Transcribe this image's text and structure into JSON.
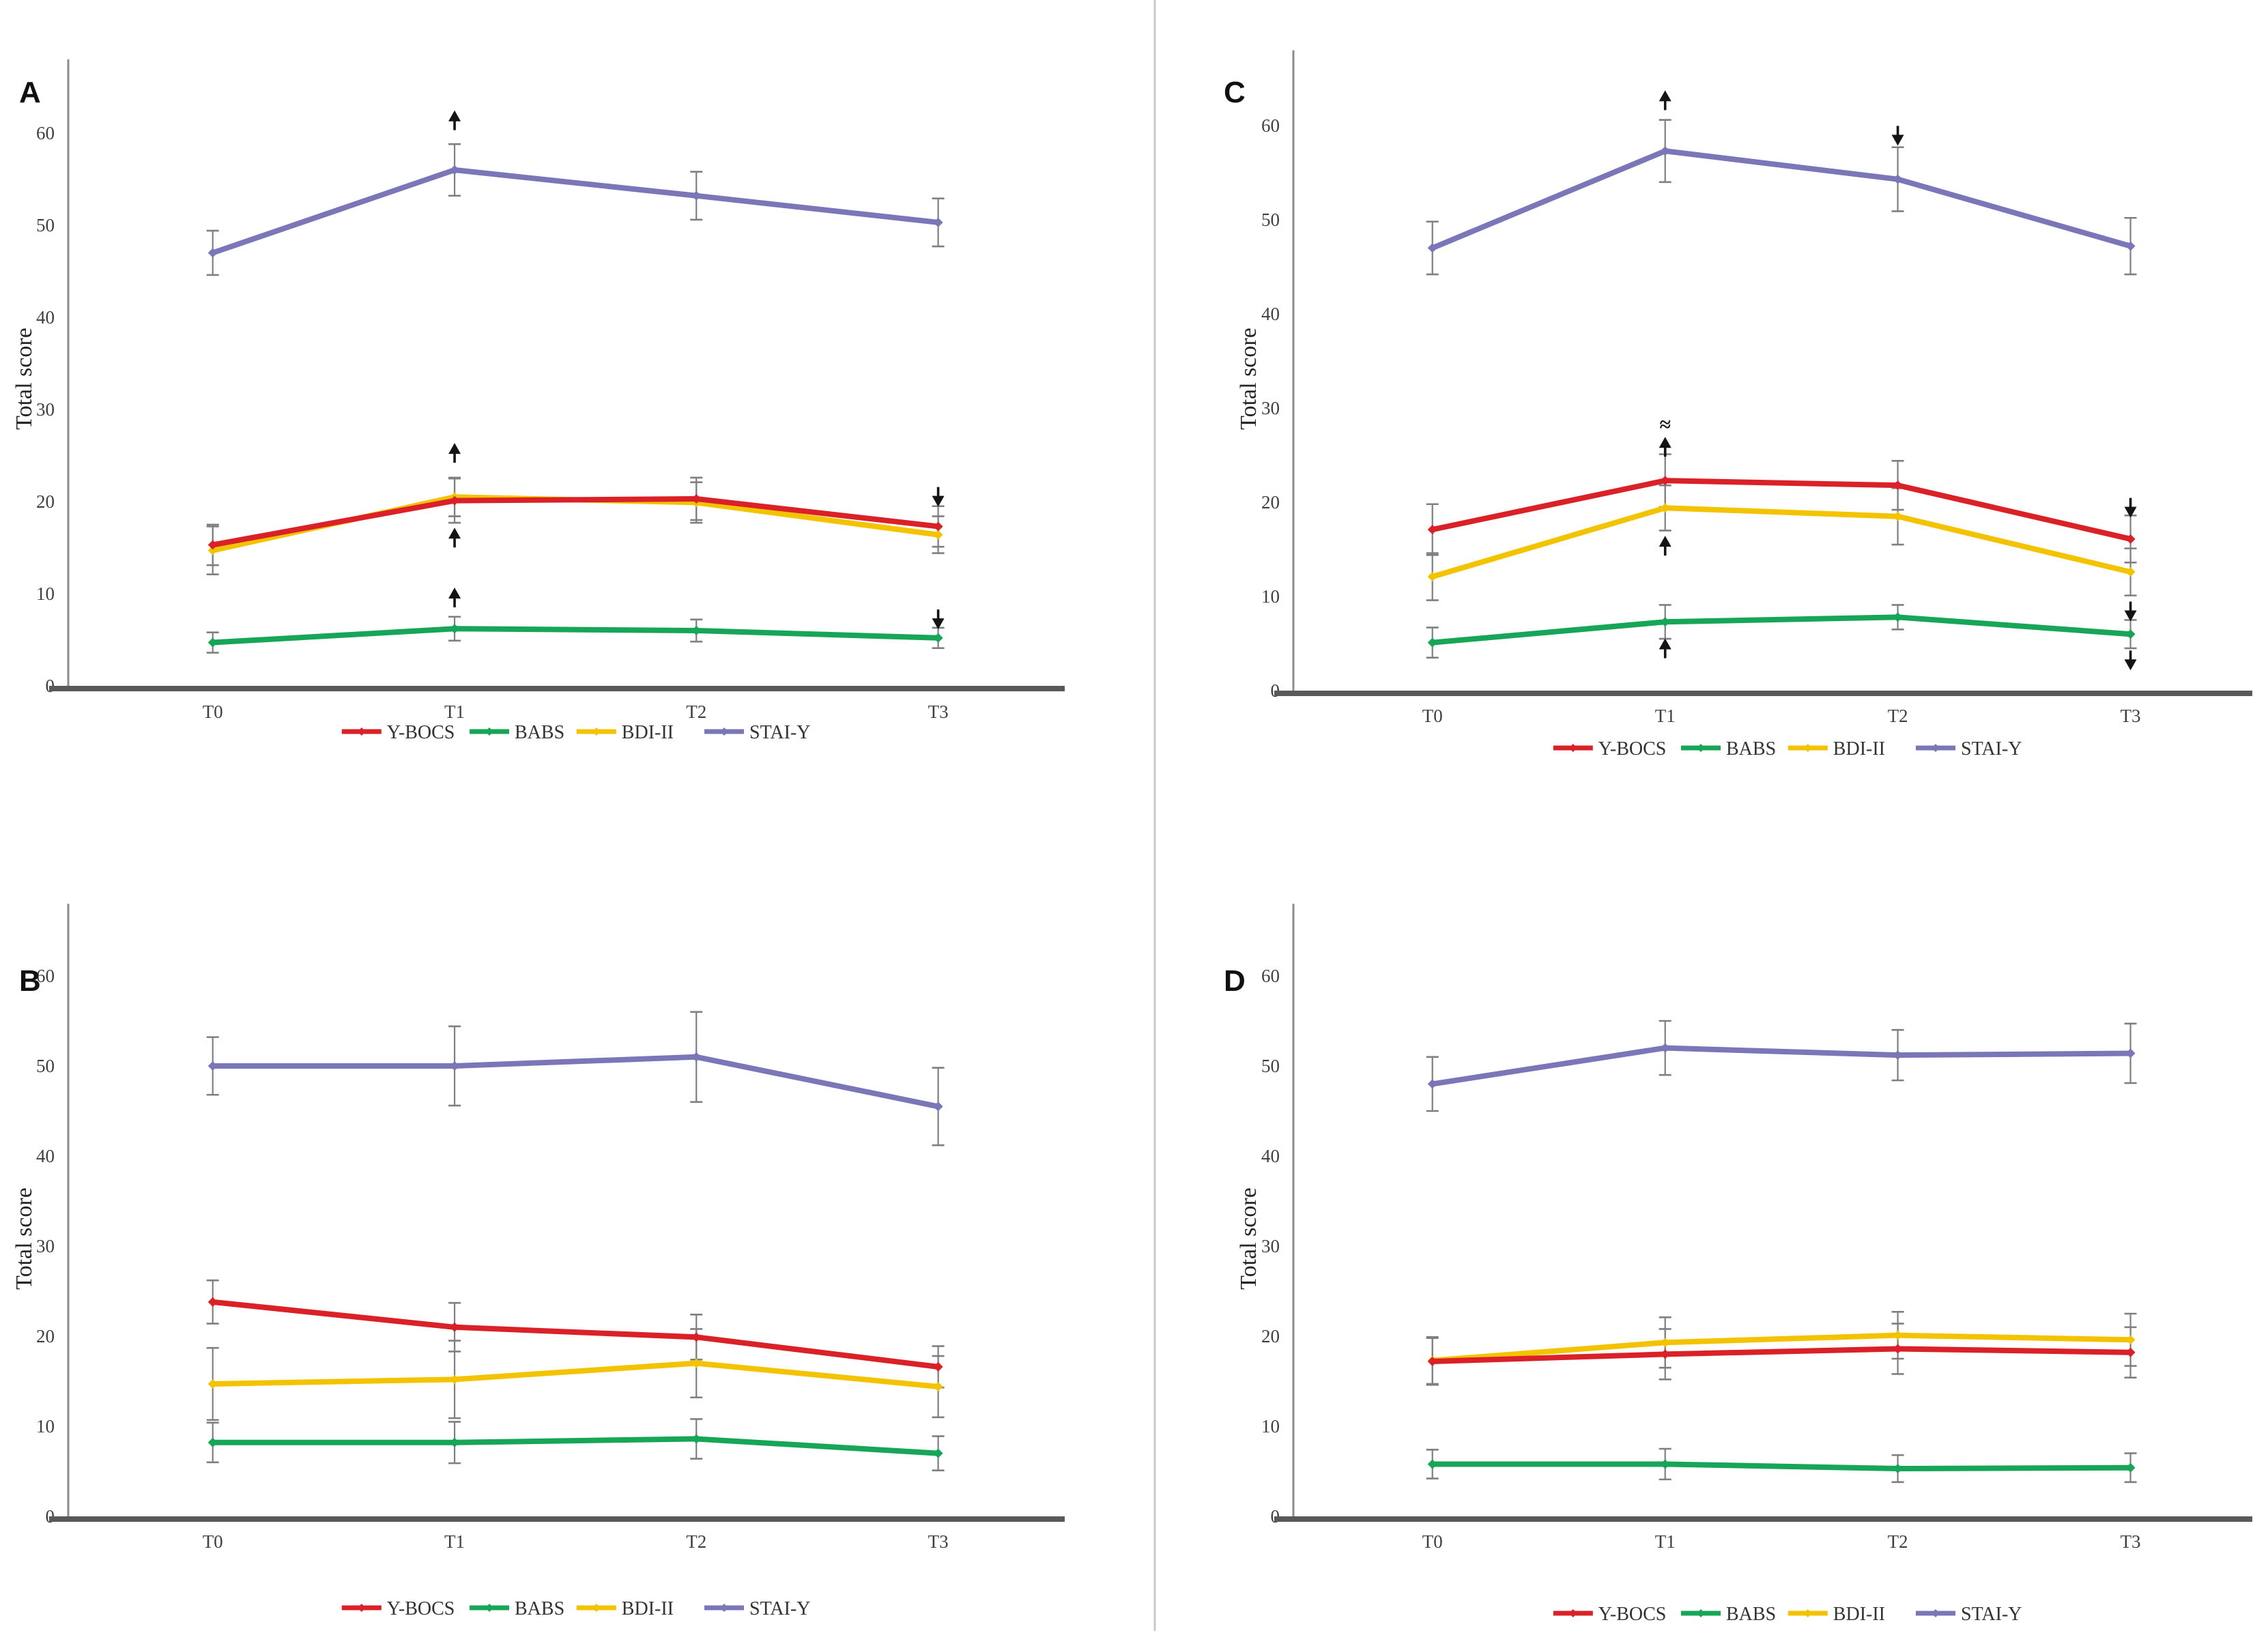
{
  "figure": {
    "ylabel": "Total score",
    "categories": [
      "T0",
      "T1",
      "T2",
      "T3"
    ],
    "yticks": [
      0,
      10,
      20,
      30,
      40,
      50,
      60
    ],
    "legend": [
      "Y-BOCS",
      "BABS",
      "BDI-II",
      "STAI-Y"
    ],
    "colors": {
      "Y-BOCS": "#da2128",
      "BABS": "#17a558",
      "BDI-II": "#f4c300",
      "STAI-Y": "#7b76b7",
      "error_bar": "#7f7f7f",
      "axis": "#595959",
      "text": "#3f3f3f",
      "annotation": "#141414",
      "separator": "#c9c9c9"
    }
  },
  "chart_data": [
    {
      "id": "A",
      "type": "line",
      "ylabel": "Total score",
      "categories": [
        "T0",
        "T1",
        "T2",
        "T3"
      ],
      "yticks": [
        0,
        10,
        20,
        30,
        40,
        50,
        60
      ],
      "ylim": [
        0,
        65
      ],
      "legend": [
        "Y-BOCS",
        "BABS",
        "BDI-II",
        "STAI-Y"
      ],
      "series": [
        {
          "name": "STAI-Y",
          "color": "#7b76b7",
          "values": [
            47.0,
            56.0,
            53.2,
            50.3
          ],
          "err": [
            2.4,
            2.8,
            2.6,
            2.6
          ]
        },
        {
          "name": "BABS",
          "color": "#17a558",
          "values": [
            4.7,
            6.2,
            6.0,
            5.2
          ],
          "err": [
            1.1,
            1.3,
            1.2,
            1.1
          ]
        },
        {
          "name": "BDI-II",
          "color": "#f4c300",
          "values": [
            14.7,
            20.5,
            19.9,
            16.4
          ],
          "err": [
            2.6,
            2.1,
            2.2,
            2.0
          ]
        },
        {
          "name": "Y-BOCS",
          "color": "#da2128",
          "values": [
            15.3,
            20.1,
            20.3,
            17.3
          ],
          "err": [
            2.2,
            2.4,
            2.3,
            2.2
          ]
        }
      ],
      "annotations": [
        {
          "category": "T1",
          "value": 61.5,
          "symbol": "up-arrow"
        },
        {
          "category": "T1",
          "value": 25.4,
          "symbol": "up-arrow"
        },
        {
          "category": "T1",
          "value": 16.2,
          "symbol": "up-arrow"
        },
        {
          "category": "T1",
          "value": 9.7,
          "symbol": "up-arrow"
        },
        {
          "category": "T3",
          "value": 20.4,
          "symbol": "down-arrow"
        },
        {
          "category": "T3",
          "value": 7.1,
          "symbol": "down-arrow"
        }
      ]
    },
    {
      "id": "B",
      "type": "line",
      "ylabel": "Total score",
      "categories": [
        "T0",
        "T1",
        "T2",
        "T3"
      ],
      "yticks": [
        0,
        10,
        20,
        30,
        40,
        50,
        60
      ],
      "ylim": [
        0,
        65
      ],
      "legend": [
        "Y-BOCS",
        "BABS",
        "BDI-II",
        "STAI-Y"
      ],
      "series": [
        {
          "name": "STAI-Y",
          "color": "#7b76b7",
          "values": [
            50.0,
            50.0,
            51.0,
            45.5
          ],
          "err": [
            3.2,
            4.4,
            5.0,
            4.3
          ]
        },
        {
          "name": "BABS",
          "color": "#17a558",
          "values": [
            8.2,
            8.2,
            8.6,
            7.0
          ],
          "err": [
            2.2,
            2.3,
            2.2,
            1.9
          ]
        },
        {
          "name": "BDI-II",
          "color": "#f4c300",
          "values": [
            14.7,
            15.2,
            17.0,
            14.4
          ],
          "err": [
            4.0,
            4.3,
            3.8,
            3.4
          ]
        },
        {
          "name": "Y-BOCS",
          "color": "#da2128",
          "values": [
            23.8,
            21.0,
            19.9,
            16.6
          ],
          "err": [
            2.4,
            2.7,
            2.5,
            2.3
          ]
        }
      ],
      "annotations": []
    },
    {
      "id": "C",
      "type": "line",
      "ylabel": "Total score",
      "categories": [
        "T0",
        "T1",
        "T2",
        "T3"
      ],
      "yticks": [
        0,
        10,
        20,
        30,
        40,
        50,
        60
      ],
      "ylim": [
        0,
        65
      ],
      "legend": [
        "Y-BOCS",
        "BABS",
        "BDI-II",
        "STAI-Y"
      ],
      "series": [
        {
          "name": "STAI-Y",
          "color": "#7b76b7",
          "values": [
            47.0,
            57.3,
            54.3,
            47.2
          ],
          "err": [
            2.8,
            3.3,
            3.4,
            3.0
          ]
        },
        {
          "name": "BABS",
          "color": "#17a558",
          "values": [
            5.1,
            7.3,
            7.8,
            6.0
          ],
          "err": [
            1.6,
            1.8,
            1.3,
            1.5
          ]
        },
        {
          "name": "BDI-II",
          "color": "#f4c300",
          "values": [
            12.1,
            19.4,
            18.5,
            12.6
          ],
          "err": [
            2.5,
            2.4,
            3.0,
            2.5
          ]
        },
        {
          "name": "Y-BOCS",
          "color": "#da2128",
          "values": [
            17.1,
            22.3,
            21.8,
            16.1
          ],
          "err": [
            2.7,
            2.8,
            2.6,
            2.5
          ]
        }
      ],
      "annotations": [
        {
          "category": "T1",
          "value": 62.8,
          "symbol": "up-arrow"
        },
        {
          "category": "T1",
          "value": 28.2,
          "symbol": "approx"
        },
        {
          "category": "T1",
          "value": 26.0,
          "symbol": "up-arrow"
        },
        {
          "category": "T1",
          "value": 15.5,
          "symbol": "up-arrow"
        },
        {
          "category": "T1",
          "value": 4.6,
          "symbol": "up-arrow"
        },
        {
          "category": "T2",
          "value": 58.8,
          "symbol": "down-arrow"
        },
        {
          "category": "T3",
          "value": 19.3,
          "symbol": "down-arrow"
        },
        {
          "category": "T3",
          "value": 8.3,
          "symbol": "down-arrow"
        },
        {
          "category": "T3",
          "value": 3.1,
          "symbol": "down-arrow"
        }
      ]
    },
    {
      "id": "D",
      "type": "line",
      "ylabel": "Total score",
      "categories": [
        "T0",
        "T1",
        "T2",
        "T3"
      ],
      "yticks": [
        0,
        10,
        20,
        30,
        40,
        50,
        60
      ],
      "ylim": [
        0,
        65
      ],
      "legend": [
        "Y-BOCS",
        "BABS",
        "BDI-II",
        "STAI-Y"
      ],
      "series": [
        {
          "name": "STAI-Y",
          "color": "#7b76b7",
          "values": [
            48.0,
            52.0,
            51.2,
            51.4
          ],
          "err": [
            3.0,
            3.0,
            2.8,
            3.3
          ]
        },
        {
          "name": "BABS",
          "color": "#17a558",
          "values": [
            5.8,
            5.8,
            5.3,
            5.4
          ],
          "err": [
            1.6,
            1.7,
            1.5,
            1.6
          ]
        },
        {
          "name": "BDI-II",
          "color": "#f4c300",
          "values": [
            17.3,
            19.3,
            20.1,
            19.6
          ],
          "err": [
            2.6,
            2.8,
            2.6,
            2.9
          ]
        },
        {
          "name": "Y-BOCS",
          "color": "#da2128",
          "values": [
            17.2,
            18.0,
            18.6,
            18.2
          ],
          "err": [
            2.6,
            2.8,
            2.8,
            2.8
          ]
        }
      ],
      "annotations": []
    }
  ]
}
